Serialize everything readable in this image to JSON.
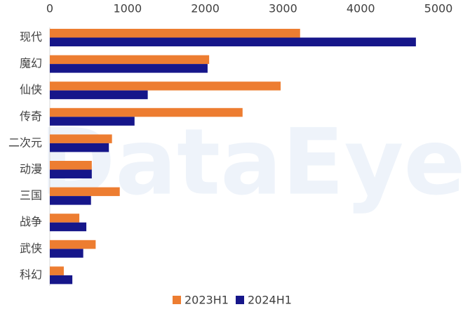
{
  "chart_data": {
    "type": "bar",
    "orientation": "horizontal",
    "watermark": "DataEye",
    "categories": [
      "现代",
      "魔幻",
      "仙侠",
      "传奇",
      "二次元",
      "动漫",
      "三国",
      "战争",
      "武侠",
      "科幻"
    ],
    "series": [
      {
        "name": "2023H1",
        "color": "#ED7D31",
        "values": [
          3220,
          2050,
          2970,
          2480,
          800,
          540,
          900,
          380,
          590,
          180
        ]
      },
      {
        "name": "2024H1",
        "color": "#16168A",
        "values": [
          4710,
          2030,
          1260,
          1090,
          760,
          540,
          530,
          470,
          430,
          290
        ]
      }
    ],
    "xlim": [
      0,
      5000
    ],
    "xticks": [
      0,
      1000,
      2000,
      3000,
      4000,
      5000
    ],
    "grid": false,
    "legend": "bottom"
  }
}
